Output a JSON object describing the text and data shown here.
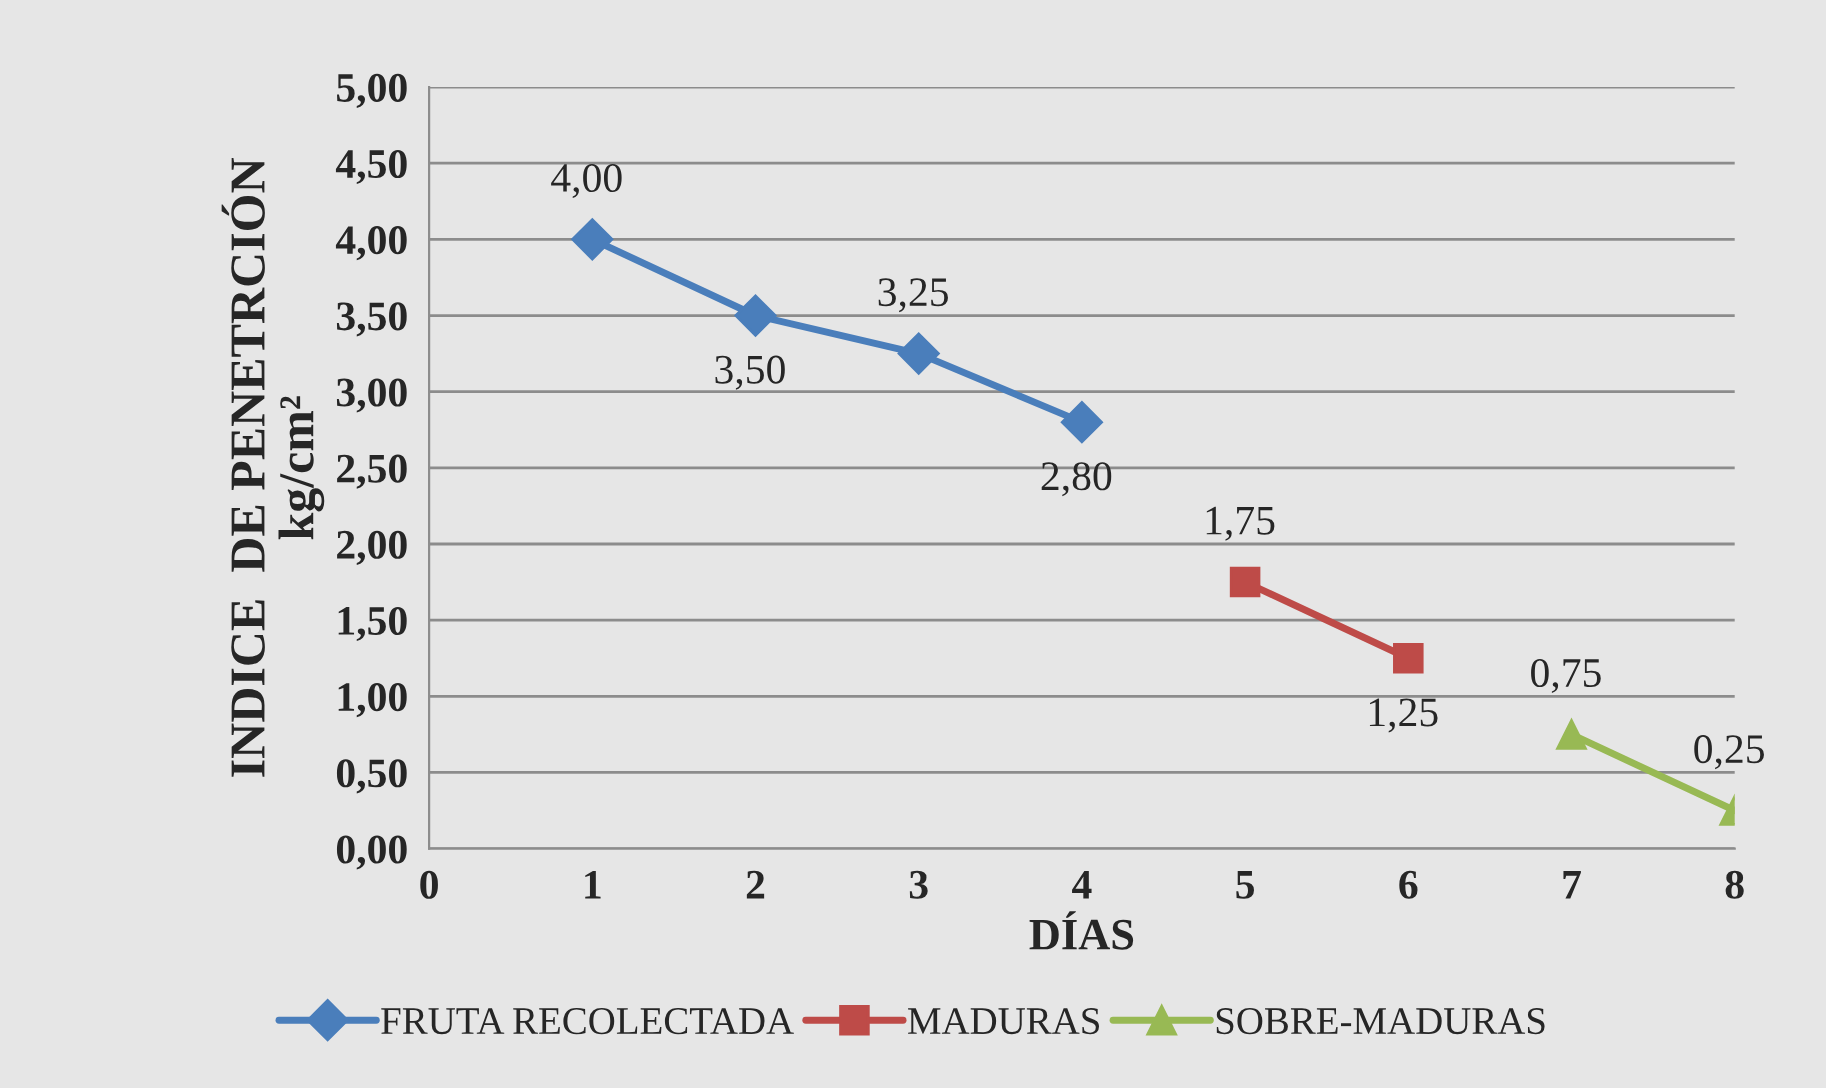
{
  "chart_data": {
    "type": "line",
    "xlabel": "DÍAS",
    "ylabel": "INDICE  DE PENETRCIÓN\nkg/cm²",
    "xlim": [
      0,
      8
    ],
    "xticks": [
      0,
      1,
      2,
      3,
      4,
      5,
      6,
      7,
      8
    ],
    "ylim": [
      0,
      5
    ],
    "yticks": [
      {
        "value": 0,
        "label": "0,00"
      },
      {
        "value": 0.5,
        "label": "0,50"
      },
      {
        "value": 1,
        "label": "1,00"
      },
      {
        "value": 1.5,
        "label": "1,50"
      },
      {
        "value": 2,
        "label": "2,00"
      },
      {
        "value": 2.5,
        "label": "2,50"
      },
      {
        "value": 3,
        "label": "3,00"
      },
      {
        "value": 3.5,
        "label": "3,50"
      },
      {
        "value": 4,
        "label": "4,00"
      },
      {
        "value": 4.5,
        "label": "4,50"
      },
      {
        "value": 5,
        "label": "5,00"
      }
    ],
    "grid": "y",
    "legend": "bottom",
    "line_style": "solid",
    "series": [
      {
        "name": "FRUTA RECOLECTADA",
        "color": "#4a7ebb",
        "marker": "diamond",
        "x": [
          1,
          2,
          3,
          4
        ],
        "values": [
          4.0,
          3.5,
          3.25,
          2.8
        ],
        "value_labels": [
          "4,00",
          "3,50",
          "3,25",
          "2,80"
        ]
      },
      {
        "name": "MADURAS",
        "color": "#be4b48",
        "marker": "square",
        "x": [
          5,
          6
        ],
        "values": [
          1.75,
          1.25
        ],
        "value_labels": [
          "1,75",
          "1,25"
        ]
      },
      {
        "name": "SOBRE-MADURAS",
        "color": "#98b954",
        "marker": "triangle",
        "x": [
          7,
          8
        ],
        "values": [
          0.75,
          0.25
        ],
        "value_labels": [
          "0,75",
          "0,25"
        ]
      }
    ]
  }
}
